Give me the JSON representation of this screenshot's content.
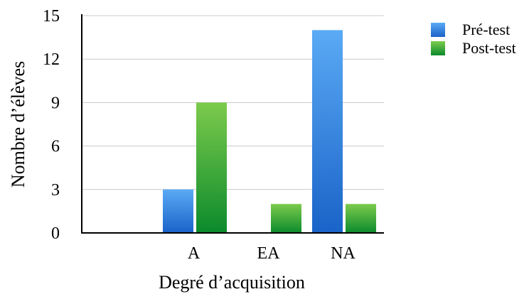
{
  "chart_data": {
    "type": "bar",
    "categories": [
      "",
      "A",
      "EA",
      "NA"
    ],
    "series": [
      {
        "name": "Pré-test",
        "values": [
          0,
          3,
          0,
          14
        ],
        "color_top": "#5aaaf5",
        "color_bottom": "#1a63c8"
      },
      {
        "name": "Post-test",
        "values": [
          0,
          9,
          2,
          2
        ],
        "color_top": "#7ccb4c",
        "color_bottom": "#0b8a2c"
      }
    ],
    "xlabel": "Degré d’acquisition",
    "ylabel": "Nombre d’élèves",
    "ylim": [
      0,
      15
    ],
    "yticks": [
      0,
      3,
      6,
      9,
      12,
      15
    ],
    "grid": true,
    "legend_position": "top-right"
  }
}
